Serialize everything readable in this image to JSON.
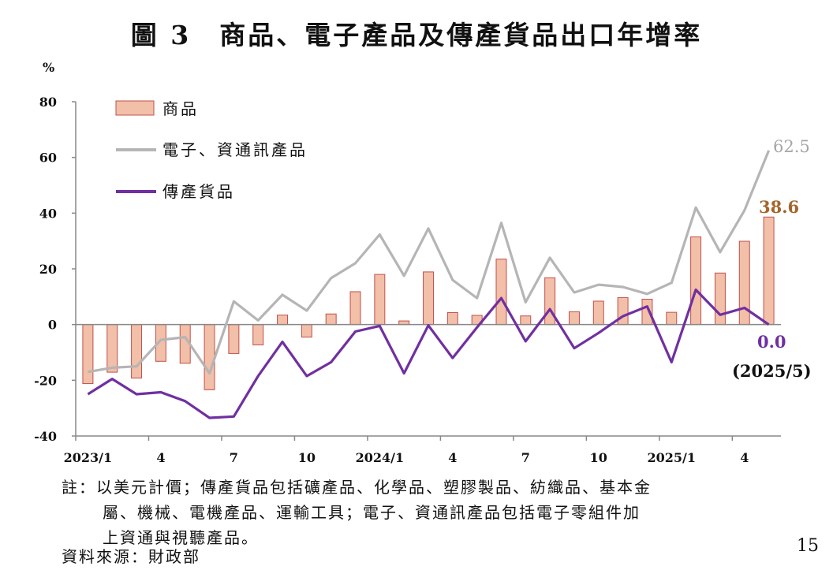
{
  "title": "圖 3　商品、電子產品及傳產貨品出口年增率",
  "unit": "%",
  "colors": {
    "bar_fill": "#f2bfa8",
    "bar_stroke": "#c0504d",
    "electronics_line": "#b5b5b5",
    "traditional_line": "#7030a0",
    "electronics_label": "#a6a6a6",
    "goods_label": "#a5652a",
    "traditional_label": "#7030a0",
    "axis": "#888888"
  },
  "chart_data": {
    "type": "bar",
    "ylim": [
      -40,
      80
    ],
    "yticks": [
      80,
      60,
      40,
      20,
      0,
      -20,
      -40
    ],
    "x": [
      "2023/1",
      "2023/2",
      "2023/3",
      "2023/4",
      "2023/5",
      "2023/6",
      "2023/7",
      "2023/8",
      "2023/9",
      "2023/10",
      "2023/11",
      "2023/12",
      "2024/1",
      "2024/2",
      "2024/3",
      "2024/4",
      "2024/5",
      "2024/6",
      "2024/7",
      "2024/8",
      "2024/9",
      "2024/10",
      "2024/11",
      "2024/12",
      "2025/1",
      "2025/2",
      "2025/3",
      "2025/4",
      "2025/5"
    ],
    "xtick_labels": [
      {
        "index": 0,
        "label": "2023/1"
      },
      {
        "index": 3,
        "label": "4"
      },
      {
        "index": 6,
        "label": "7"
      },
      {
        "index": 9,
        "label": "10"
      },
      {
        "index": 12,
        "label": "2024/1"
      },
      {
        "index": 15,
        "label": "4"
      },
      {
        "index": 18,
        "label": "7"
      },
      {
        "index": 21,
        "label": "10"
      },
      {
        "index": 24,
        "label": "2025/1"
      },
      {
        "index": 27,
        "label": "4"
      }
    ],
    "series": [
      {
        "name": "商品",
        "kind": "bar",
        "values": [
          -21.2,
          -17.1,
          -19.2,
          -13.2,
          -13.9,
          -23.4,
          -10.4,
          -7.3,
          3.4,
          -4.5,
          3.8,
          11.8,
          18.0,
          1.3,
          18.9,
          4.3,
          3.3,
          23.5,
          3.1,
          16.8,
          4.6,
          8.4,
          9.7,
          9.1,
          4.4,
          31.5,
          18.5,
          29.9,
          38.6
        ]
      },
      {
        "name": "電子、資通訊產品",
        "kind": "line",
        "values": [
          -17.0,
          -15.5,
          -15.0,
          -5.5,
          -4.5,
          -17.5,
          8.3,
          1.5,
          10.7,
          5.0,
          16.7,
          22.0,
          32.3,
          17.5,
          34.5,
          16.0,
          9.5,
          36.5,
          8.0,
          24.0,
          11.5,
          14.3,
          13.5,
          11.0,
          15.0,
          42.0,
          26.0,
          41.0,
          62.5
        ]
      },
      {
        "name": "傳產貨品",
        "kind": "line",
        "values": [
          -25.0,
          -19.5,
          -25.0,
          -24.3,
          -27.5,
          -33.5,
          -33.0,
          -18.5,
          -6.2,
          -18.5,
          -13.5,
          -2.5,
          -0.5,
          -17.5,
          -0.3,
          -12.0,
          -1.0,
          9.5,
          -6.0,
          5.5,
          -8.5,
          -3.0,
          3.0,
          6.5,
          -13.5,
          12.5,
          3.5,
          6.0,
          0.0
        ]
      }
    ],
    "annotations": {
      "electronics_last": "62.5",
      "goods_last": "38.6",
      "traditional_last": "0.0",
      "period": "(2025/5)"
    }
  },
  "notes": {
    "line1": "註：以美元計價；傳產貨品包括礦產品、化學品、塑膠製品、紡織品、基本金",
    "line2": "屬、機械、電機產品、運輸工具；電子、資通訊產品包括電子零組件加",
    "line3": "上資通與視聽產品。"
  },
  "source": "資料來源：財政部",
  "page_number": "15"
}
